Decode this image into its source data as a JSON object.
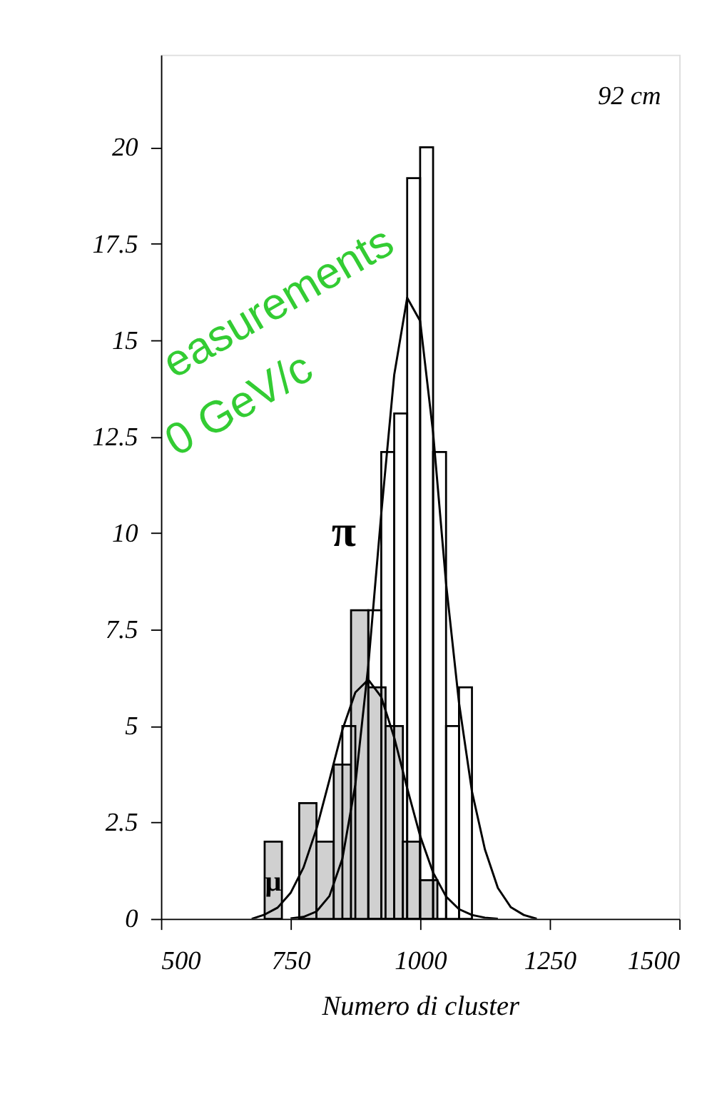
{
  "chart_data": {
    "type": "histogram",
    "xlabel": "Numero di cluster",
    "xlim": [
      500,
      1500
    ],
    "xticks": [
      500,
      750,
      1000,
      1250,
      1500
    ],
    "ylim": [
      0,
      22.4
    ],
    "yticks": [
      0,
      2.5,
      5,
      7.5,
      10,
      12.5,
      15,
      17.5,
      20
    ],
    "grid": false,
    "legend": false,
    "annotations": [
      "92 cm",
      "easurements",
      "0 GeV/c"
    ],
    "series": [
      {
        "name": "π",
        "color": "#000000",
        "bins": [
          850,
          875,
          900,
          925,
          950,
          975,
          1000,
          1025,
          1050,
          1075,
          1100
        ],
        "values": [
          5,
          null,
          8,
          12.1,
          13.1,
          19.2,
          20,
          12.1,
          5,
          6
        ]
      },
      {
        "name": "μ",
        "color": "#d0d0d0",
        "bins": [
          700,
          733.3,
          766.7,
          800,
          833.3,
          866.7,
          900,
          933.3,
          966.7,
          1000,
          1033.3
        ],
        "values": [
          2,
          null,
          3,
          2,
          4,
          8,
          6,
          5,
          2,
          1
        ]
      },
      {
        "type": "line",
        "color": "#000000",
        "x": [
          750,
          775,
          800,
          825,
          850,
          875,
          900,
          925,
          950,
          975,
          1000,
          1025,
          1050,
          1075,
          1100,
          1125,
          1150,
          1175,
          1200,
          1225
        ],
        "values": [
          0.01,
          0.05,
          0.19,
          0.59,
          1.56,
          3.48,
          6.57,
          10.5,
          14.1,
          16.1,
          15.5,
          12.6,
          8.7,
          5.6,
          3.3,
          1.8,
          0.8,
          0.3,
          0.1,
          0
        ]
      },
      {
        "type": "line",
        "color": "#000000",
        "x": [
          675,
          700,
          725,
          750,
          775,
          800,
          825,
          850,
          875,
          900,
          925,
          950,
          975,
          1000,
          1025,
          1050,
          1075,
          1100,
          1125,
          1150
        ],
        "values": [
          0,
          0.11,
          0.29,
          0.67,
          1.33,
          2.33,
          3.6,
          4.9,
          5.87,
          6.2,
          5.75,
          4.7,
          3.39,
          2.15,
          1.2,
          0.58,
          0.25,
          0.1,
          0.03,
          0
        ]
      }
    ]
  }
}
